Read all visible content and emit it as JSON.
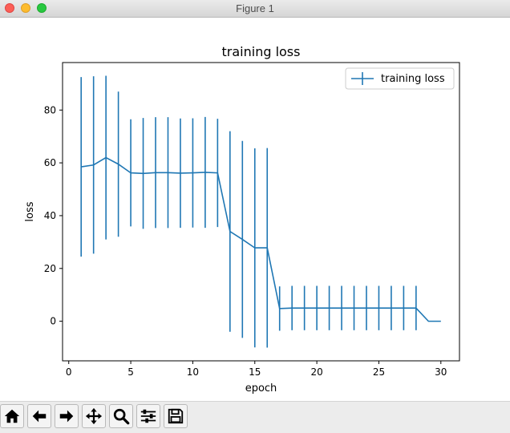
{
  "window": {
    "title": "Figure 1"
  },
  "toolbar": {
    "buttons": [
      {
        "name": "home-icon"
      },
      {
        "name": "back-arrow-icon"
      },
      {
        "name": "forward-arrow-icon"
      },
      {
        "name": "pan-move-icon"
      },
      {
        "name": "zoom-magnifier-icon"
      },
      {
        "name": "configure-subplots-icon"
      },
      {
        "name": "save-floppy-icon"
      }
    ]
  },
  "chart_data": {
    "type": "line",
    "title": "training loss",
    "xlabel": "epoch",
    "ylabel": "loss",
    "xlim": [
      -0.5,
      31.5
    ],
    "ylim": [
      -15,
      98
    ],
    "xticks": [
      0,
      5,
      10,
      15,
      20,
      25,
      30
    ],
    "yticks": [
      0,
      20,
      40,
      60,
      80
    ],
    "grid": false,
    "legend_position": "top-right",
    "line_color": "#1f77b4",
    "series": [
      {
        "name": "training loss",
        "x": [
          1,
          2,
          3,
          4,
          5,
          6,
          7,
          8,
          9,
          10,
          11,
          12,
          13,
          14,
          15,
          16,
          17,
          18,
          19,
          20,
          21,
          22,
          23,
          24,
          25,
          26,
          27,
          28,
          29,
          30
        ],
        "y": [
          58.5,
          59.2,
          62,
          59.5,
          56.2,
          56,
          56.3,
          56.3,
          56.1,
          56.2,
          56.4,
          56.2,
          34,
          31,
          27.8,
          27.8,
          4.8,
          5,
          5,
          5,
          5,
          5,
          5,
          5,
          5,
          5,
          5,
          5,
          0,
          0
        ],
        "err": [
          34,
          33.6,
          31,
          27.5,
          20.3,
          21,
          21,
          21,
          20.7,
          20.7,
          21,
          20.5,
          38,
          37.3,
          37.7,
          37.8,
          8.4,
          8.4,
          8.4,
          8.4,
          8.4,
          8.4,
          8.4,
          8.4,
          8.4,
          8.4,
          8.4,
          8.4,
          0,
          0
        ]
      }
    ]
  }
}
